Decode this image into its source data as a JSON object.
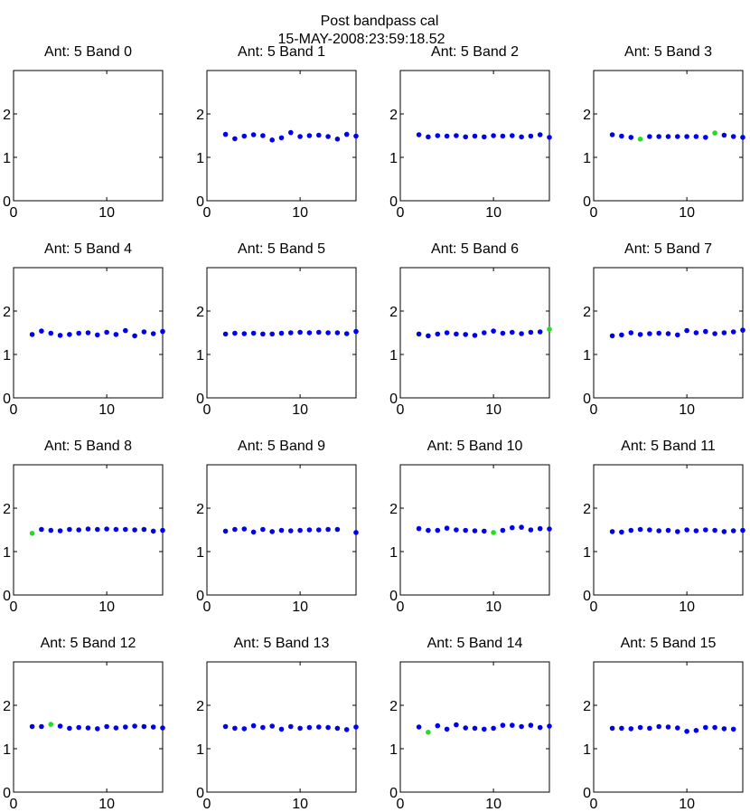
{
  "figure": {
    "title": "Post bandpass cal",
    "subtitle": "15-MAY-2008:23:59:18.52"
  },
  "colors": {
    "primary_points": "#0000ee",
    "flagged_points": "#22dd22"
  },
  "chart_data": [
    {
      "type": "scatter",
      "title": "Ant: 5 Band 0",
      "xlim": [
        0,
        16
      ],
      "ylim": [
        0,
        3
      ],
      "xticks": [
        0,
        10
      ],
      "yticks": [
        0,
        1,
        2
      ],
      "grid": false,
      "series": [
        {
          "color": "#0000ee",
          "x": [],
          "y": []
        },
        {
          "color": "#22dd22",
          "x": [],
          "y": []
        }
      ]
    },
    {
      "type": "scatter",
      "title": "Ant: 5 Band 1",
      "xlim": [
        0,
        16
      ],
      "ylim": [
        0,
        3
      ],
      "xticks": [
        0,
        10
      ],
      "yticks": [
        0,
        1,
        2
      ],
      "grid": false,
      "series": [
        {
          "color": "#0000ee",
          "x": [
            2,
            3,
            4,
            5,
            6,
            7,
            8,
            9,
            10,
            11,
            12,
            13,
            14,
            15,
            16
          ],
          "y": [
            1.53,
            1.43,
            1.49,
            1.52,
            1.5,
            1.4,
            1.45,
            1.57,
            1.48,
            1.5,
            1.51,
            1.48,
            1.42,
            1.53,
            1.49
          ]
        },
        {
          "color": "#22dd22",
          "x": [],
          "y": []
        }
      ]
    },
    {
      "type": "scatter",
      "title": "Ant: 5 Band 2",
      "xlim": [
        0,
        16
      ],
      "ylim": [
        0,
        3
      ],
      "xticks": [
        0,
        10
      ],
      "yticks": [
        0,
        1,
        2
      ],
      "grid": false,
      "series": [
        {
          "color": "#0000ee",
          "x": [
            2,
            3,
            4,
            5,
            6,
            7,
            8,
            9,
            10,
            11,
            12,
            13,
            14,
            15,
            16
          ],
          "y": [
            1.52,
            1.47,
            1.5,
            1.49,
            1.5,
            1.47,
            1.49,
            1.47,
            1.5,
            1.49,
            1.5,
            1.47,
            1.49,
            1.52,
            1.46
          ]
        },
        {
          "color": "#22dd22",
          "x": [],
          "y": []
        }
      ]
    },
    {
      "type": "scatter",
      "title": "Ant: 5 Band 3",
      "xlim": [
        0,
        16
      ],
      "ylim": [
        0,
        3
      ],
      "xticks": [
        0,
        10
      ],
      "yticks": [
        0,
        1,
        2
      ],
      "grid": false,
      "series": [
        {
          "color": "#0000ee",
          "x": [
            2,
            3,
            4,
            6,
            7,
            8,
            9,
            10,
            11,
            12,
            14,
            15,
            16
          ],
          "y": [
            1.52,
            1.49,
            1.46,
            1.48,
            1.48,
            1.48,
            1.48,
            1.48,
            1.48,
            1.46,
            1.51,
            1.48,
            1.46
          ]
        },
        {
          "color": "#22dd22",
          "x": [
            5,
            13
          ],
          "y": [
            1.42,
            1.56
          ]
        }
      ]
    },
    {
      "type": "scatter",
      "title": "Ant: 5 Band 4",
      "xlim": [
        0,
        16
      ],
      "ylim": [
        0,
        3
      ],
      "xticks": [
        0,
        10
      ],
      "yticks": [
        0,
        1,
        2
      ],
      "grid": false,
      "series": [
        {
          "color": "#0000ee",
          "x": [
            2,
            3,
            4,
            5,
            6,
            7,
            8,
            9,
            10,
            11,
            12,
            13,
            14,
            15,
            16
          ],
          "y": [
            1.46,
            1.54,
            1.49,
            1.44,
            1.46,
            1.49,
            1.5,
            1.45,
            1.51,
            1.46,
            1.55,
            1.43,
            1.52,
            1.48,
            1.53
          ]
        },
        {
          "color": "#22dd22",
          "x": [],
          "y": []
        }
      ]
    },
    {
      "type": "scatter",
      "title": "Ant: 5 Band 5",
      "xlim": [
        0,
        16
      ],
      "ylim": [
        0,
        3
      ],
      "xticks": [
        0,
        10
      ],
      "yticks": [
        0,
        1,
        2
      ],
      "grid": false,
      "series": [
        {
          "color": "#0000ee",
          "x": [
            2,
            3,
            4,
            5,
            6,
            7,
            8,
            9,
            10,
            11,
            12,
            13,
            14,
            15,
            16
          ],
          "y": [
            1.47,
            1.49,
            1.48,
            1.49,
            1.47,
            1.47,
            1.49,
            1.5,
            1.51,
            1.5,
            1.51,
            1.5,
            1.5,
            1.48,
            1.53
          ]
        },
        {
          "color": "#22dd22",
          "x": [],
          "y": []
        }
      ]
    },
    {
      "type": "scatter",
      "title": "Ant: 5 Band 6",
      "xlim": [
        0,
        16
      ],
      "ylim": [
        0,
        3
      ],
      "xticks": [
        0,
        10
      ],
      "yticks": [
        0,
        1,
        2
      ],
      "grid": false,
      "series": [
        {
          "color": "#0000ee",
          "x": [
            2,
            3,
            4,
            5,
            6,
            7,
            8,
            9,
            10,
            11,
            12,
            13,
            14,
            15
          ],
          "y": [
            1.47,
            1.43,
            1.47,
            1.5,
            1.47,
            1.46,
            1.44,
            1.5,
            1.54,
            1.49,
            1.51,
            1.48,
            1.51,
            1.52
          ]
        },
        {
          "color": "#22dd22",
          "x": [
            16
          ],
          "y": [
            1.58
          ]
        }
      ]
    },
    {
      "type": "scatter",
      "title": "Ant: 5 Band 7",
      "xlim": [
        0,
        16
      ],
      "ylim": [
        0,
        3
      ],
      "xticks": [
        0,
        10
      ],
      "yticks": [
        0,
        1,
        2
      ],
      "grid": false,
      "series": [
        {
          "color": "#0000ee",
          "x": [
            2,
            3,
            4,
            5,
            6,
            7,
            8,
            9,
            10,
            11,
            12,
            13,
            14,
            15,
            16
          ],
          "y": [
            1.43,
            1.45,
            1.5,
            1.46,
            1.48,
            1.49,
            1.48,
            1.45,
            1.55,
            1.5,
            1.53,
            1.48,
            1.5,
            1.52,
            1.56
          ]
        },
        {
          "color": "#22dd22",
          "x": [],
          "y": []
        }
      ]
    },
    {
      "type": "scatter",
      "title": "Ant: 5 Band 8",
      "xlim": [
        0,
        16
      ],
      "ylim": [
        0,
        3
      ],
      "xticks": [
        0,
        10
      ],
      "yticks": [
        0,
        1,
        2
      ],
      "grid": false,
      "series": [
        {
          "color": "#0000ee",
          "x": [
            3,
            4,
            5,
            6,
            7,
            8,
            9,
            10,
            11,
            12,
            13,
            14,
            15,
            16
          ],
          "y": [
            1.51,
            1.49,
            1.48,
            1.51,
            1.5,
            1.52,
            1.51,
            1.52,
            1.51,
            1.51,
            1.5,
            1.51,
            1.47,
            1.49
          ]
        },
        {
          "color": "#22dd22",
          "x": [
            2
          ],
          "y": [
            1.42
          ]
        }
      ]
    },
    {
      "type": "scatter",
      "title": "Ant: 5 Band 9",
      "xlim": [
        0,
        16
      ],
      "ylim": [
        0,
        3
      ],
      "xticks": [
        0,
        10
      ],
      "yticks": [
        0,
        1,
        2
      ],
      "grid": false,
      "series": [
        {
          "color": "#0000ee",
          "x": [
            2,
            3,
            4,
            5,
            6,
            7,
            8,
            9,
            10,
            11,
            12,
            13,
            14,
            16
          ],
          "y": [
            1.47,
            1.51,
            1.52,
            1.45,
            1.51,
            1.46,
            1.49,
            1.48,
            1.49,
            1.5,
            1.5,
            1.51,
            1.51,
            1.44
          ]
        },
        {
          "color": "#22dd22",
          "x": [],
          "y": []
        }
      ]
    },
    {
      "type": "scatter",
      "title": "Ant: 5 Band 10",
      "xlim": [
        0,
        16
      ],
      "ylim": [
        0,
        3
      ],
      "xticks": [
        0,
        10
      ],
      "yticks": [
        0,
        1,
        2
      ],
      "grid": false,
      "series": [
        {
          "color": "#0000ee",
          "x": [
            2,
            3,
            4,
            5,
            6,
            7,
            8,
            9,
            11,
            12,
            13,
            14,
            15,
            16
          ],
          "y": [
            1.53,
            1.49,
            1.49,
            1.54,
            1.5,
            1.49,
            1.48,
            1.47,
            1.49,
            1.55,
            1.56,
            1.5,
            1.53,
            1.52
          ]
        },
        {
          "color": "#22dd22",
          "x": [
            10
          ],
          "y": [
            1.44
          ]
        }
      ]
    },
    {
      "type": "scatter",
      "title": "Ant: 5 Band 11",
      "xlim": [
        0,
        16
      ],
      "ylim": [
        0,
        3
      ],
      "xticks": [
        0,
        10
      ],
      "yticks": [
        0,
        1,
        2
      ],
      "grid": false,
      "series": [
        {
          "color": "#0000ee",
          "x": [
            2,
            3,
            4,
            5,
            6,
            7,
            8,
            9,
            10,
            11,
            12,
            13,
            14,
            15,
            16
          ],
          "y": [
            1.46,
            1.45,
            1.49,
            1.51,
            1.5,
            1.48,
            1.49,
            1.46,
            1.5,
            1.48,
            1.5,
            1.49,
            1.46,
            1.48,
            1.49
          ]
        },
        {
          "color": "#22dd22",
          "x": [],
          "y": []
        }
      ]
    },
    {
      "type": "scatter",
      "title": "Ant: 5 Band 12",
      "xlim": [
        0,
        16
      ],
      "ylim": [
        0,
        3
      ],
      "xticks": [
        0,
        10
      ],
      "yticks": [
        0,
        1,
        2
      ],
      "grid": false,
      "series": [
        {
          "color": "#0000ee",
          "x": [
            2,
            3,
            5,
            6,
            7,
            8,
            9,
            10,
            11,
            12,
            13,
            14,
            15,
            16
          ],
          "y": [
            1.51,
            1.51,
            1.52,
            1.47,
            1.49,
            1.48,
            1.46,
            1.51,
            1.48,
            1.5,
            1.52,
            1.51,
            1.5,
            1.48
          ]
        },
        {
          "color": "#22dd22",
          "x": [
            4
          ],
          "y": [
            1.56
          ]
        }
      ]
    },
    {
      "type": "scatter",
      "title": "Ant: 5 Band 13",
      "xlim": [
        0,
        16
      ],
      "ylim": [
        0,
        3
      ],
      "xticks": [
        0,
        10
      ],
      "yticks": [
        0,
        1,
        2
      ],
      "grid": false,
      "series": [
        {
          "color": "#0000ee",
          "x": [
            2,
            3,
            4,
            5,
            6,
            7,
            8,
            9,
            10,
            11,
            12,
            13,
            14,
            15,
            16
          ],
          "y": [
            1.51,
            1.47,
            1.46,
            1.53,
            1.49,
            1.52,
            1.45,
            1.51,
            1.47,
            1.49,
            1.5,
            1.49,
            1.47,
            1.44,
            1.5
          ]
        },
        {
          "color": "#22dd22",
          "x": [],
          "y": []
        }
      ]
    },
    {
      "type": "scatter",
      "title": "Ant: 5 Band 14",
      "xlim": [
        0,
        16
      ],
      "ylim": [
        0,
        3
      ],
      "xticks": [
        0,
        10
      ],
      "yticks": [
        0,
        1,
        2
      ],
      "grid": false,
      "series": [
        {
          "color": "#0000ee",
          "x": [
            2,
            4,
            5,
            6,
            7,
            8,
            9,
            10,
            11,
            12,
            13,
            14,
            15,
            16
          ],
          "y": [
            1.5,
            1.53,
            1.45,
            1.55,
            1.48,
            1.47,
            1.45,
            1.47,
            1.54,
            1.54,
            1.51,
            1.54,
            1.49,
            1.52
          ]
        },
        {
          "color": "#22dd22",
          "x": [
            3
          ],
          "y": [
            1.38
          ]
        }
      ]
    },
    {
      "type": "scatter",
      "title": "Ant: 5 Band 15",
      "xlim": [
        0,
        16
      ],
      "ylim": [
        0,
        3
      ],
      "xticks": [
        0,
        10
      ],
      "yticks": [
        0,
        1,
        2
      ],
      "grid": false,
      "series": [
        {
          "color": "#0000ee",
          "x": [
            2,
            3,
            4,
            5,
            6,
            7,
            8,
            9,
            10,
            11,
            12,
            13,
            14,
            15
          ],
          "y": [
            1.47,
            1.47,
            1.46,
            1.49,
            1.47,
            1.51,
            1.5,
            1.48,
            1.4,
            1.42,
            1.49,
            1.49,
            1.46,
            1.45
          ]
        },
        {
          "color": "#22dd22",
          "x": [],
          "y": []
        }
      ]
    }
  ]
}
